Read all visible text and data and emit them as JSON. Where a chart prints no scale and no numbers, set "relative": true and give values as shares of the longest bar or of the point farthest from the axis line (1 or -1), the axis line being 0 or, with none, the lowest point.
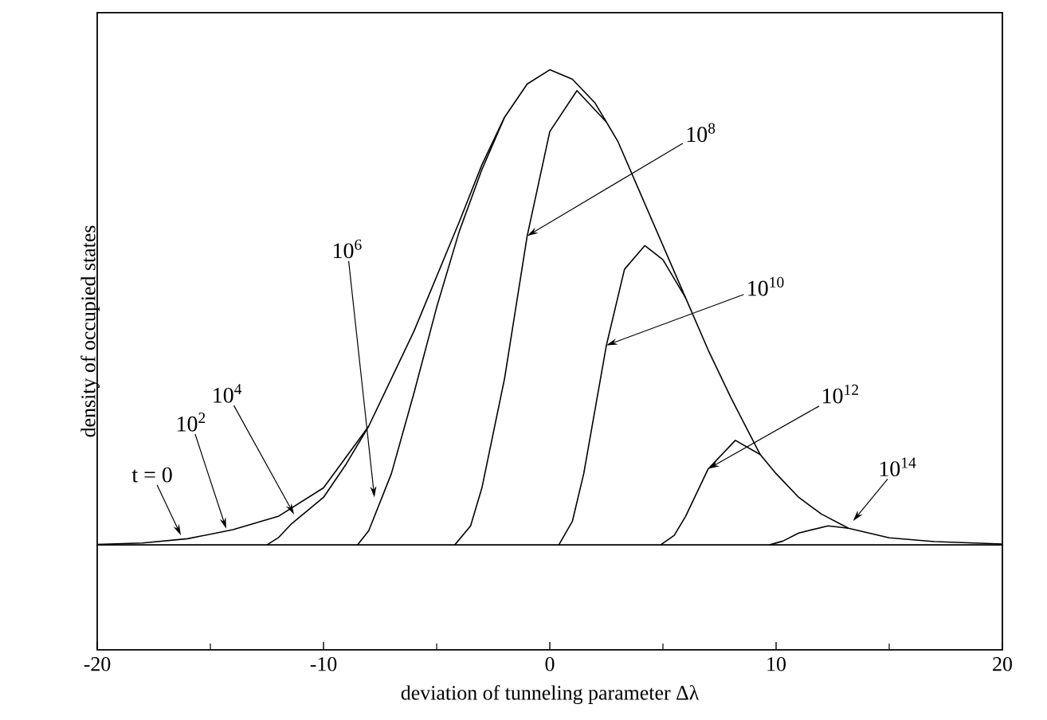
{
  "chart_data": {
    "type": "line",
    "relative": true,
    "xlabel": "deviation of tunneling parameter Δλ",
    "ylabel": "density of occupied states",
    "xlim": [
      -20,
      20
    ],
    "xticks": [
      -20,
      -10,
      0,
      10,
      20
    ],
    "series": [
      {
        "color": "#000000",
        "x": [
          -20,
          -18,
          -16,
          -14,
          -12,
          -10,
          -8,
          -6,
          -4,
          -3,
          -2,
          -1,
          0,
          1,
          2,
          2.5,
          3,
          4,
          5,
          6,
          7,
          8,
          9.3,
          10,
          11,
          12,
          13.2,
          15,
          17,
          20
        ],
        "values": [
          0.001,
          0.004,
          0.013,
          0.032,
          0.06,
          0.12,
          0.25,
          0.45,
          0.68,
          0.8,
          0.9,
          0.97,
          1,
          0.98,
          0.93,
          0.89,
          0.85,
          0.74,
          0.63,
          0.52,
          0.41,
          0.31,
          0.19,
          0.15,
          0.1,
          0.065,
          0.035,
          0.015,
          0.007,
          0.002
        ]
      },
      {
        "color": "#000000",
        "x": [
          -12.5,
          -12,
          -11.4,
          -10,
          -9,
          -8
        ],
        "values": [
          0,
          0.015,
          0.045,
          0.1,
          0.17,
          0.25
        ]
      },
      {
        "color": "#000000",
        "x": [
          -8.5,
          -8,
          -7,
          -6,
          -5,
          -4,
          -3,
          -2
        ],
        "values": [
          0,
          0.03,
          0.15,
          0.32,
          0.5,
          0.66,
          0.79,
          0.9
        ]
      },
      {
        "color": "#000000",
        "x": [
          -4.2,
          -3.5,
          -3,
          -2,
          -1,
          0,
          1.2,
          2.5
        ],
        "values": [
          0,
          0.04,
          0.12,
          0.35,
          0.65,
          0.87,
          0.956,
          0.89
        ]
      },
      {
        "color": "#000000",
        "x": [
          0.4,
          1,
          1.5,
          2.5,
          3.3,
          4.2,
          5,
          6
        ],
        "values": [
          0,
          0.05,
          0.15,
          0.42,
          0.58,
          0.63,
          0.6,
          0.52
        ]
      },
      {
        "color": "#000000",
        "x": [
          4.9,
          5.5,
          6,
          7,
          8.2,
          9.3
        ],
        "values": [
          0,
          0.02,
          0.06,
          0.16,
          0.22,
          0.19
        ]
      },
      {
        "color": "#000000",
        "x": [
          9.7,
          10.3,
          11,
          12.3,
          13.2
        ],
        "values": [
          0,
          0.008,
          0.025,
          0.04,
          0.035
        ]
      }
    ],
    "annotations": [
      {
        "text": "t = 0",
        "x": -16.3,
        "y": 0.02
      },
      {
        "text": "10$^{2}$",
        "x": -14.3,
        "y": 0.034
      },
      {
        "text": "10$^{4}$",
        "x": -11.3,
        "y": 0.064
      },
      {
        "text": "10$^{6}$",
        "x": -7.75,
        "y": 0.1
      },
      {
        "text": "10$^{8}$",
        "x": -1,
        "y": 0.65
      },
      {
        "text": "10$^{10}$",
        "x": 2.5,
        "y": 0.42
      },
      {
        "text": "10$^{12}$",
        "x": 7,
        "y": 0.16
      },
      {
        "text": "10$^{14}$",
        "x": 13.4,
        "y": 0.05
      }
    ]
  }
}
